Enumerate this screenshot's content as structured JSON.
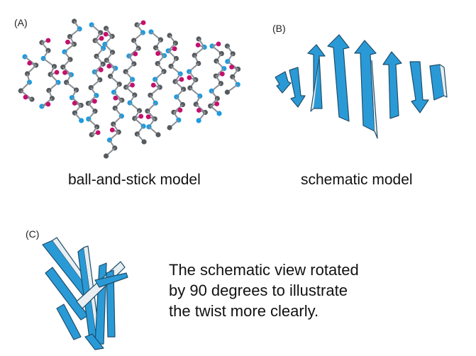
{
  "panels": {
    "a": {
      "label": "(A)",
      "caption": "ball-and-stick model"
    },
    "b": {
      "label": "(B)",
      "caption": "schematic model"
    },
    "c": {
      "label": "(C)"
    }
  },
  "description": {
    "line1": "The schematic view rotated",
    "line2": "by 90 degrees to illustrate",
    "line3": "the twist more clearly."
  },
  "colors": {
    "carbon": "#555a5f",
    "nitrogen": "#1e9be0",
    "oxygen": "#c4106e",
    "strand": "#2a9ad6",
    "strand_edge": "#1d4e6b",
    "strand_back": "#e8eef2"
  }
}
